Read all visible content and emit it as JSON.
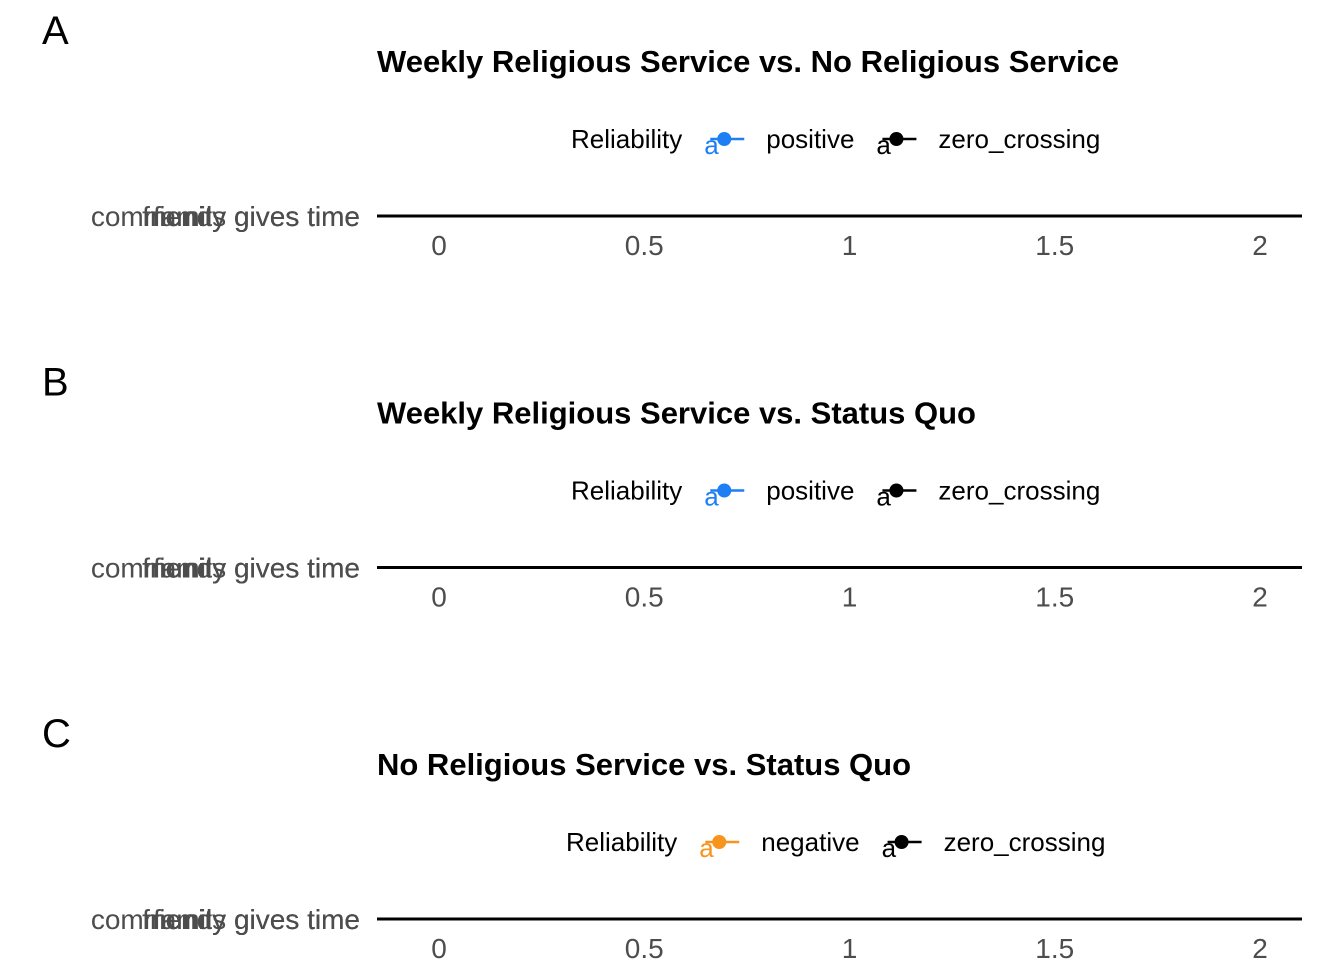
{
  "colors": {
    "positive": "#1E7FF5",
    "negative": "#F7941D",
    "zero_crossing": "#000000",
    "axis_line": "#000000",
    "tick_text": "#4d4d4d"
  },
  "chart_data": [
    {
      "type": "scatter",
      "tag": "A",
      "title": "Weekly Religious Service vs. No Religious Service",
      "legend": {
        "title": "Reliability",
        "placement": "top",
        "entries": [
          {
            "key": "positive",
            "label": "positive",
            "glyph": "a"
          },
          {
            "key": "zero_crossing",
            "label": "zero_crossing",
            "glyph": "a"
          }
        ]
      },
      "y_categories": [
        "community gives time",
        "family gives time",
        "friends gives time"
      ],
      "x_ticks": [
        "0",
        "0.5",
        "1",
        "1.5",
        "2"
      ],
      "xlim": [
        -0.15,
        2.1
      ],
      "grid": false,
      "points": []
    },
    {
      "type": "scatter",
      "tag": "B",
      "title": "Weekly Religious Service vs. Status Quo",
      "legend": {
        "title": "Reliability",
        "placement": "top",
        "entries": [
          {
            "key": "positive",
            "label": "positive",
            "glyph": "a"
          },
          {
            "key": "zero_crossing",
            "label": "zero_crossing",
            "glyph": "a"
          }
        ]
      },
      "y_categories": [
        "community gives time",
        "family gives time",
        "friends gives time"
      ],
      "x_ticks": [
        "0",
        "0.5",
        "1",
        "1.5",
        "2"
      ],
      "xlim": [
        -0.15,
        2.1
      ],
      "grid": false,
      "points": []
    },
    {
      "type": "scatter",
      "tag": "C",
      "title": "No Religious Service vs. Status Quo",
      "legend": {
        "title": "Reliability",
        "placement": "top",
        "entries": [
          {
            "key": "negative",
            "label": "negative",
            "glyph": "a"
          },
          {
            "key": "zero_crossing",
            "label": "zero_crossing",
            "glyph": "a"
          }
        ]
      },
      "y_categories": [
        "community gives time",
        "family gives time",
        "friends gives time"
      ],
      "x_ticks": [
        "0",
        "0.5",
        "1",
        "1.5",
        "2"
      ],
      "xlim": [
        -0.15,
        2.1
      ],
      "grid": false,
      "points": []
    }
  ]
}
